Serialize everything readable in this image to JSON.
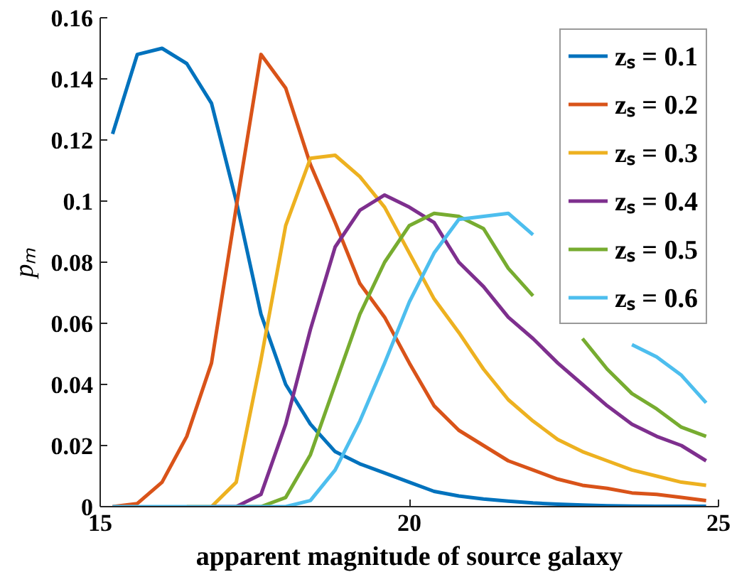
{
  "chart_data": {
    "type": "line",
    "xlabel": "apparent magnitude of source galaxy",
    "ylabel": "pₘ",
    "x": [
      15.2,
      15.6,
      16.0,
      16.4,
      16.8,
      17.2,
      17.6,
      18.0,
      18.4,
      18.8,
      19.2,
      19.6,
      20.0,
      20.4,
      20.8,
      21.2,
      21.6,
      22.0,
      22.4,
      22.8,
      23.2,
      23.6,
      24.0,
      24.4,
      24.8
    ],
    "series": [
      {
        "name": "zₛ = 0.1",
        "color": "#0072bd",
        "values": [
          0.122,
          0.148,
          0.15,
          0.145,
          0.132,
          0.1,
          0.063,
          0.04,
          0.027,
          0.018,
          0.014,
          0.011,
          0.008,
          0.005,
          0.0035,
          0.0025,
          0.0018,
          0.0012,
          0.0008,
          0.0005,
          0.0003,
          0.0002,
          0.0001,
          0.0001,
          0.0001
        ]
      },
      {
        "name": "zₛ = 0.2",
        "color": "#d95319",
        "values": [
          0,
          0.001,
          0.008,
          0.023,
          0.047,
          0.098,
          0.148,
          0.137,
          0.112,
          0.093,
          0.073,
          0.062,
          0.047,
          0.033,
          0.025,
          0.02,
          0.015,
          0.012,
          0.009,
          0.007,
          0.006,
          0.0045,
          0.004,
          0.003,
          0.002
        ]
      },
      {
        "name": "zₛ = 0.3",
        "color": "#edb120",
        "values": [
          null,
          null,
          null,
          0,
          0,
          0.008,
          0.048,
          0.092,
          0.114,
          0.115,
          0.108,
          0.098,
          0.083,
          0.068,
          0.057,
          0.045,
          0.035,
          0.028,
          0.022,
          0.018,
          0.015,
          0.012,
          0.01,
          0.008,
          0.007
        ]
      },
      {
        "name": "zₛ = 0.4",
        "color": "#7e2f8e",
        "values": [
          null,
          null,
          null,
          null,
          0,
          0,
          0.004,
          0.027,
          0.058,
          0.085,
          0.097,
          0.102,
          0.098,
          0.093,
          0.08,
          0.072,
          0.062,
          0.055,
          0.047,
          0.04,
          0.033,
          0.027,
          0.023,
          0.02,
          0.015
        ]
      },
      {
        "name": "zₛ = 0.5",
        "color": "#77ac30",
        "values": [
          null,
          null,
          null,
          null,
          null,
          0,
          0,
          0.003,
          0.017,
          0.04,
          0.063,
          0.08,
          0.092,
          0.096,
          0.095,
          0.091,
          0.078,
          0.069,
          null,
          0.055,
          0.045,
          0.037,
          0.032,
          0.026,
          0.023
        ]
      },
      {
        "name": "zₛ = 0.6",
        "color": "#4dbeee",
        "values": [
          0,
          0,
          0,
          0,
          0,
          0,
          0,
          0,
          0.002,
          0.012,
          0.028,
          0.047,
          0.067,
          0.083,
          0.094,
          0.095,
          0.096,
          0.089,
          null,
          null,
          null,
          0.053,
          0.049,
          0.043,
          0.034
        ]
      }
    ],
    "xlim": [
      15,
      25
    ],
    "xticks": [
      15,
      20,
      25
    ],
    "ylim": [
      0,
      0.16
    ],
    "yticks": [
      0,
      0.02,
      0.04,
      0.06,
      0.08,
      0.1,
      0.12,
      0.14,
      0.16
    ],
    "grid": false,
    "legend": "top right"
  }
}
